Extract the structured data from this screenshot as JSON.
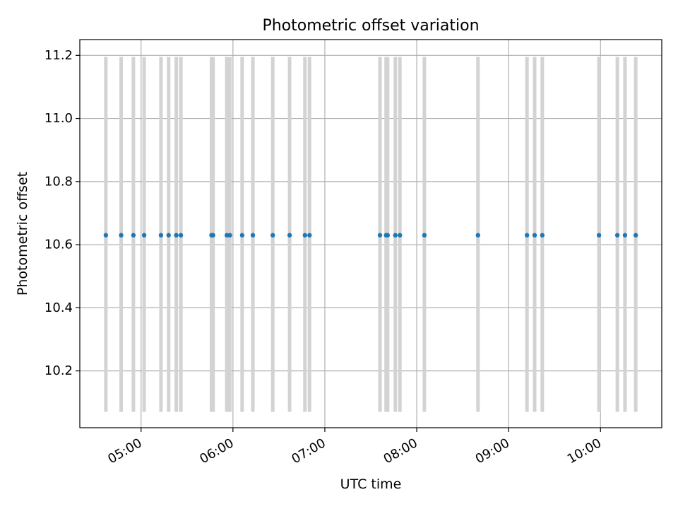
{
  "chart_data": {
    "type": "scatter",
    "title": "Photometric offset variation",
    "xlabel": "UTC time",
    "ylabel": "Photometric offset",
    "xlim": [
      "04:20",
      "10:40"
    ],
    "ylim": [
      10.02,
      11.25
    ],
    "grid": true,
    "x_ticks": [
      "05:00",
      "06:00",
      "07:00",
      "08:00",
      "09:00",
      "10:00"
    ],
    "y_ticks": [
      "10.2",
      "10.4",
      "10.6",
      "10.8",
      "11.0",
      "11.2"
    ],
    "error_bar_range": [
      10.07,
      11.195
    ],
    "points": [
      {
        "t": "04:37",
        "y": 10.63
      },
      {
        "t": "04:47",
        "y": 10.63
      },
      {
        "t": "04:55",
        "y": 10.63
      },
      {
        "t": "05:02",
        "y": 10.63
      },
      {
        "t": "05:13",
        "y": 10.63
      },
      {
        "t": "05:18",
        "y": 10.63
      },
      {
        "t": "05:23",
        "y": 10.63
      },
      {
        "t": "05:26",
        "y": 10.63
      },
      {
        "t": "05:46",
        "y": 10.63
      },
      {
        "t": "05:47",
        "y": 10.63
      },
      {
        "t": "05:56",
        "y": 10.63
      },
      {
        "t": "05:58",
        "y": 10.63
      },
      {
        "t": "06:06",
        "y": 10.63
      },
      {
        "t": "06:13",
        "y": 10.63
      },
      {
        "t": "06:26",
        "y": 10.63
      },
      {
        "t": "06:37",
        "y": 10.63
      },
      {
        "t": "06:47",
        "y": 10.63
      },
      {
        "t": "06:50",
        "y": 10.63
      },
      {
        "t": "07:36",
        "y": 10.63
      },
      {
        "t": "07:40",
        "y": 10.63
      },
      {
        "t": "07:41",
        "y": 10.63
      },
      {
        "t": "07:46",
        "y": 10.63
      },
      {
        "t": "07:49",
        "y": 10.63
      },
      {
        "t": "08:05",
        "y": 10.63
      },
      {
        "t": "08:40",
        "y": 10.63
      },
      {
        "t": "09:12",
        "y": 10.63
      },
      {
        "t": "09:17",
        "y": 10.63
      },
      {
        "t": "09:22",
        "y": 10.63
      },
      {
        "t": "09:59",
        "y": 10.63
      },
      {
        "t": "10:11",
        "y": 10.63
      },
      {
        "t": "10:16",
        "y": 10.63
      },
      {
        "t": "10:23",
        "y": 10.63
      }
    ],
    "colors": {
      "point": "#1f77b4",
      "error_bar": "#d3d3d3",
      "grid": "#b0b0b0",
      "axis": "#000000"
    }
  }
}
